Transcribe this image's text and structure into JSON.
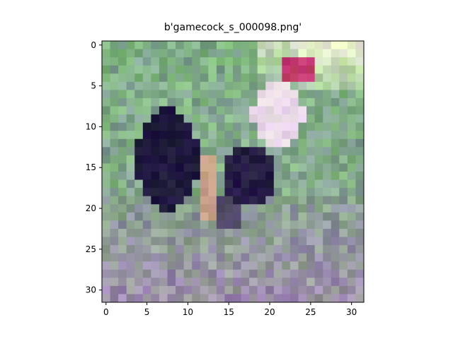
{
  "title": "b'gamecock_s_000098.png'",
  "image": {
    "description_colors": {
      "background_top": "#e6f0c8",
      "foliage": "#7fae86",
      "ground": "#9c8fa8",
      "rooster_dark": "#1a1738",
      "rooster_light": "#e8d8e6",
      "comb": "#c23a6c",
      "leg": "#c9a08a"
    },
    "grid_size": 32
  },
  "axes": {
    "x_ticks": [
      "0",
      "5",
      "10",
      "15",
      "20",
      "25",
      "30"
    ],
    "y_ticks": [
      "0",
      "5",
      "10",
      "15",
      "20",
      "25",
      "30"
    ],
    "x_tick_values": [
      0,
      5,
      10,
      15,
      20,
      25,
      30
    ],
    "y_tick_values": [
      0,
      5,
      10,
      15,
      20,
      25,
      30
    ],
    "xlim": [
      -0.5,
      31.5
    ],
    "ylim": [
      31.5,
      -0.5
    ]
  }
}
